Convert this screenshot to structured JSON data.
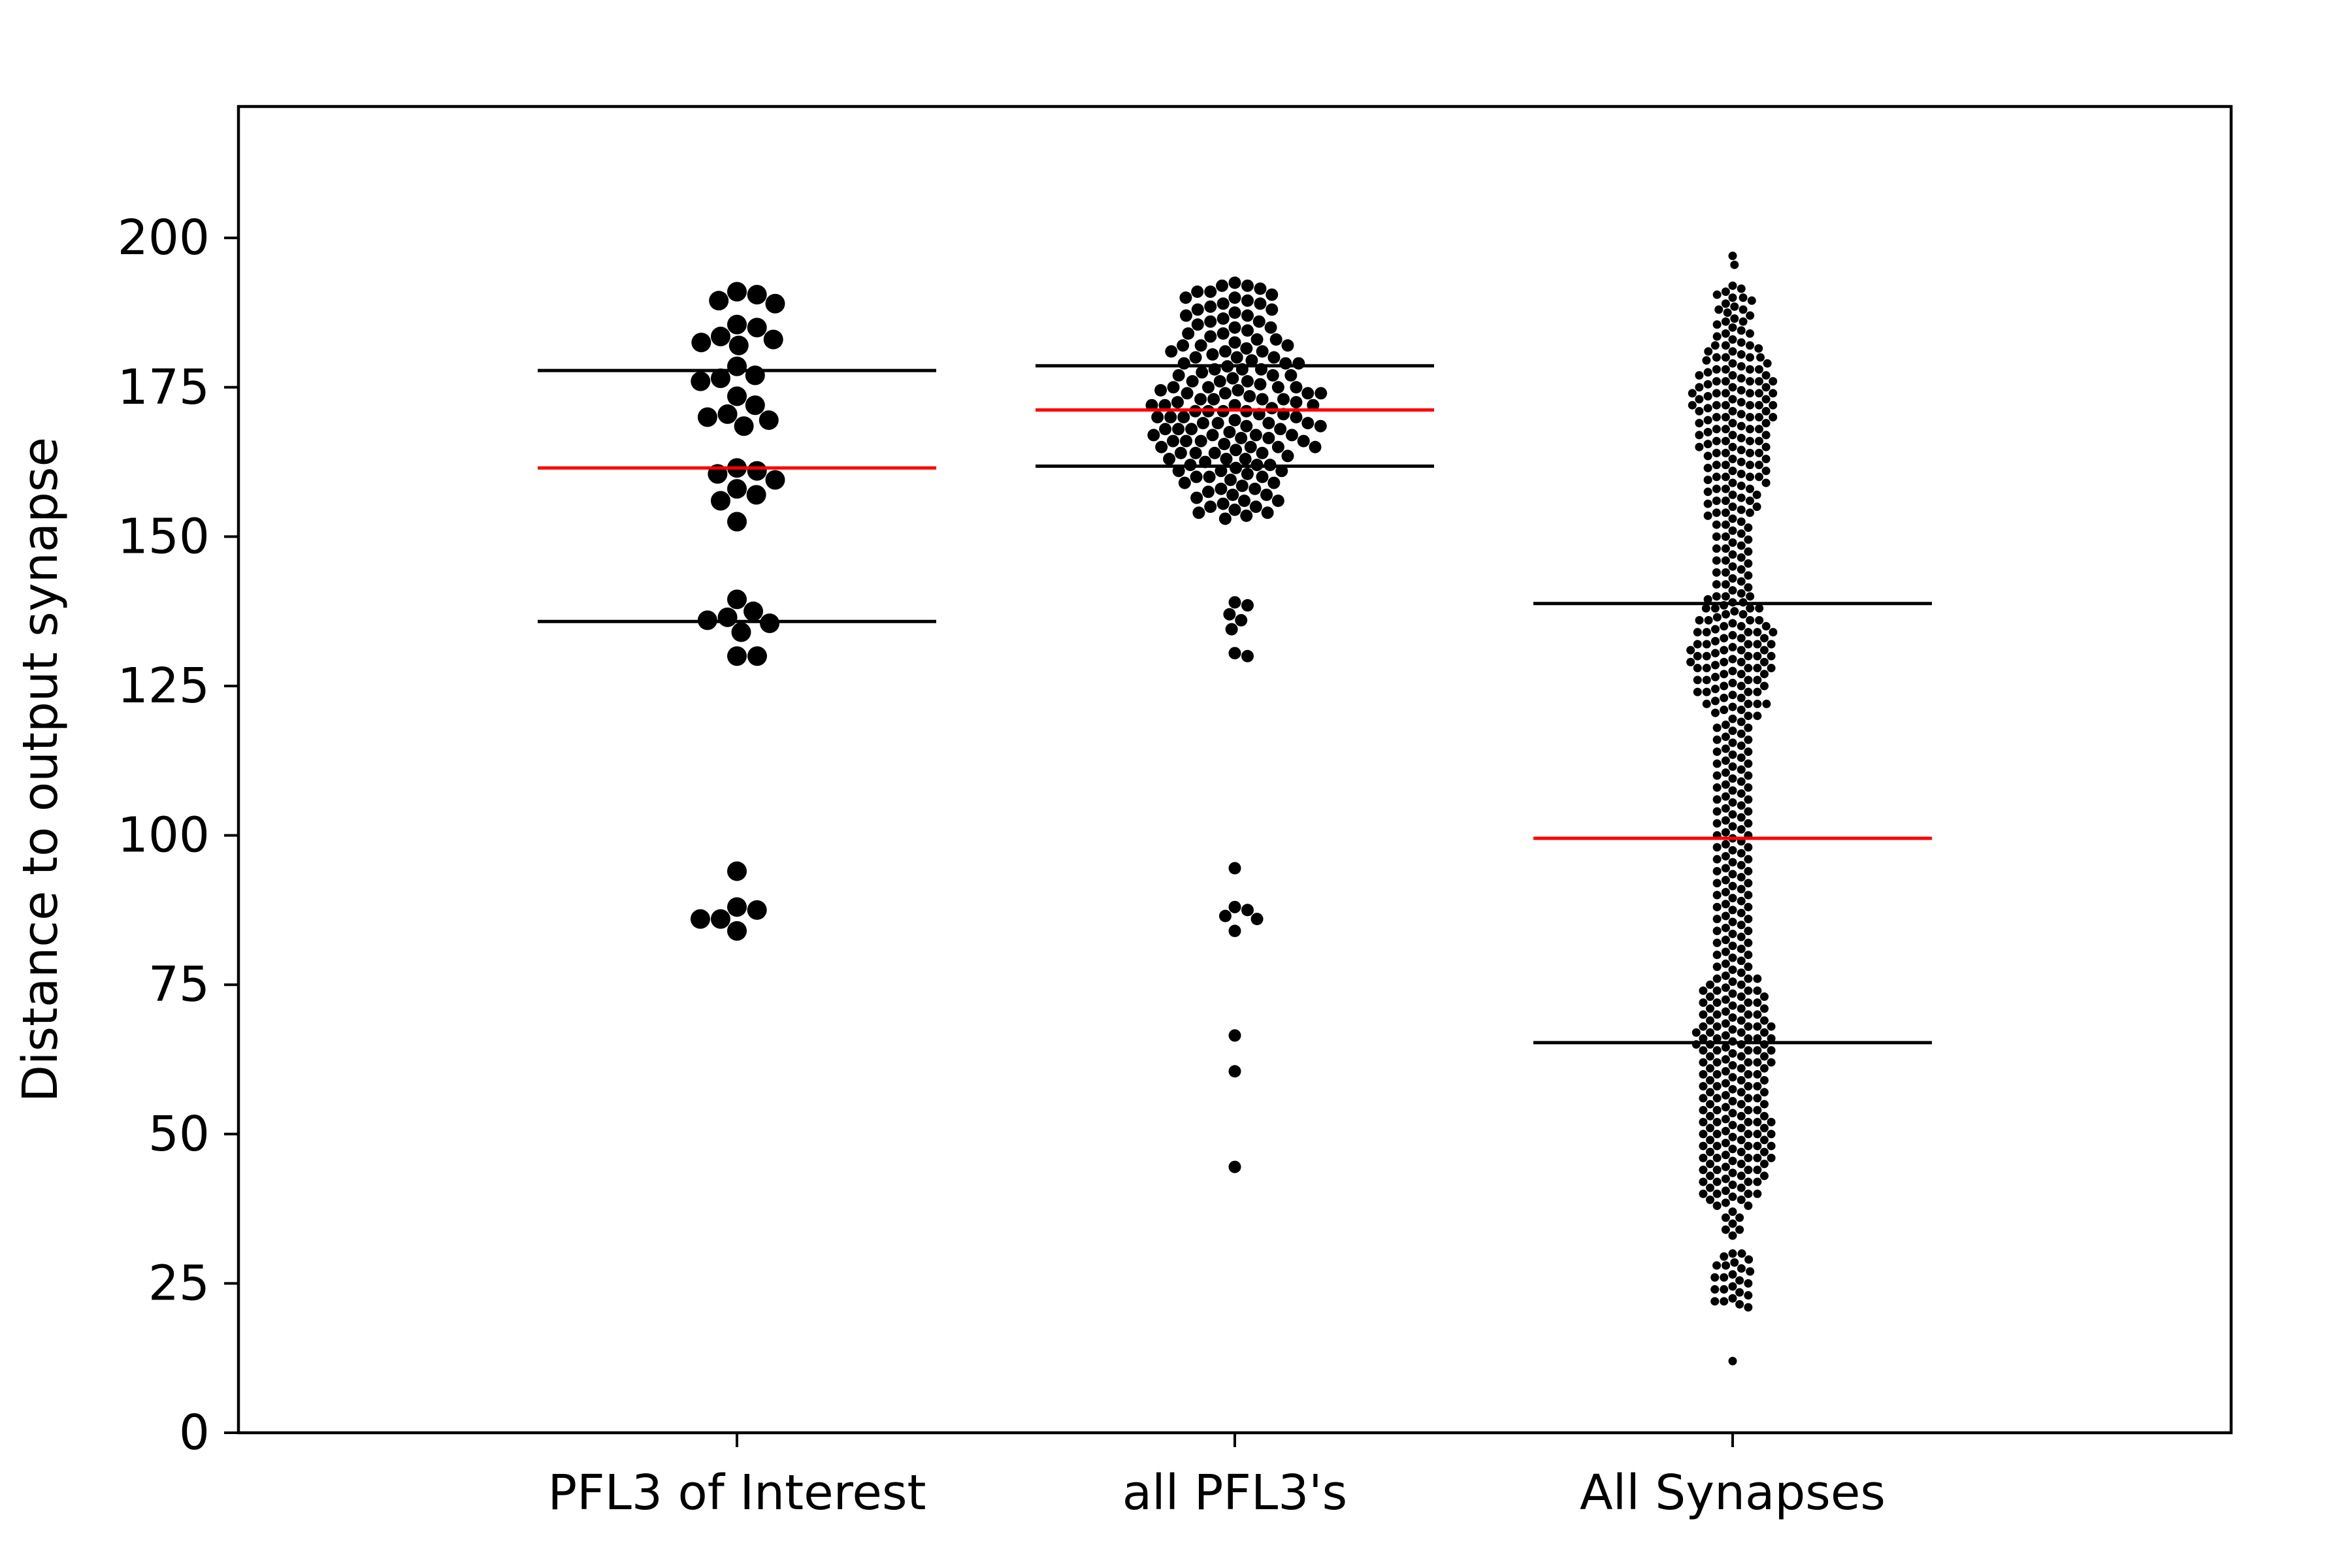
{
  "chart_data": {
    "type": "scatter",
    "subtype": "swarm",
    "title": "",
    "xlabel": "",
    "ylabel": "Distance to output synapse",
    "ylim": [
      0,
      222
    ],
    "yticks": [
      0,
      25,
      50,
      75,
      100,
      125,
      150,
      175,
      200
    ],
    "grid": false,
    "legend": "none",
    "colors": {
      "points": "#000000",
      "median": "#ff0000",
      "quartile": "#000000"
    },
    "categories": [
      "PFL3 of Interest",
      "all PFL3's",
      "All Synapses"
    ],
    "groups": [
      {
        "name": "PFL3 of Interest",
        "median": 161.5,
        "q1": 135.8,
        "q3": 177.8,
        "values": [
          191,
          190.5,
          189.5,
          189,
          185.5,
          185,
          183.5,
          183,
          182.5,
          182,
          178.5,
          177,
          176.5,
          176,
          173.5,
          172,
          170.5,
          170,
          169.5,
          168.5,
          161.5,
          161,
          160.5,
          159.5,
          158,
          157,
          156,
          152.5,
          139.5,
          137.5,
          136.5,
          136,
          135.5,
          134,
          130,
          130,
          94,
          88,
          87.5,
          86,
          86,
          84
        ]
      },
      {
        "name": "all PFL3's",
        "median": 171.2,
        "q1": 161.8,
        "q3": 178.6,
        "values": [
          192.5,
          192,
          191.5,
          191,
          190.5,
          190,
          189.5,
          189,
          188.5,
          188,
          187.5,
          187,
          186.5,
          186,
          185.5,
          185,
          184.5,
          184,
          183.5,
          183,
          182.5,
          182,
          181.5,
          181,
          180.5,
          180,
          179.5,
          179,
          178.5,
          178,
          177.5,
          177,
          176.5,
          176,
          175.5,
          175,
          174.5,
          174,
          173.5,
          173,
          172.5,
          172,
          171.5,
          171,
          170.5,
          170,
          169.5,
          169,
          168.5,
          168,
          167.5,
          167,
          166.5,
          166,
          165.5,
          165,
          164.5,
          164,
          163.5,
          163,
          162.5,
          162,
          161.5,
          161,
          160.5,
          160,
          159.5,
          159,
          158.5,
          158,
          157.5,
          157,
          156.5,
          156,
          155.5,
          155,
          154.5,
          154,
          153.5,
          153,
          192,
          191,
          190,
          189,
          188,
          187,
          186,
          185,
          184,
          183,
          182,
          181,
          180,
          179,
          178,
          177,
          176,
          175,
          174,
          173,
          172,
          171,
          170,
          169,
          168,
          167,
          166,
          165,
          164,
          163,
          162,
          161,
          160,
          159,
          158,
          157,
          156,
          155,
          154,
          182,
          181,
          180,
          179,
          178,
          177,
          176,
          175,
          174,
          173,
          172,
          171,
          170,
          169,
          168,
          167,
          166,
          165,
          164,
          163,
          162,
          161,
          160,
          175,
          174,
          173,
          172,
          171,
          170,
          169,
          168,
          167,
          166,
          165,
          164,
          174.5,
          172.5,
          170.5,
          168.5,
          166.5,
          139,
          138.5,
          137,
          136,
          134.5,
          130.5,
          130,
          94.5,
          88,
          87.5,
          86.5,
          86,
          84,
          66.5,
          60.5,
          44.5
        ]
      },
      {
        "name": "All Synapses",
        "median": 99.5,
        "q1": 65.3,
        "q3": 138.8,
        "values": [
          197,
          195.5,
          192,
          191.5,
          191,
          190.5,
          190,
          189.5,
          189,
          188.5,
          188,
          187.5,
          187,
          186.5,
          186,
          185.5,
          185,
          184.5,
          184,
          183.5,
          183,
          182.5,
          182,
          181.5,
          181,
          180.5,
          180,
          179.5,
          179,
          178.5,
          178,
          177.5,
          177,
          176.5,
          176,
          175.5,
          175,
          174.5,
          174,
          173.5,
          173,
          172.5,
          172,
          171.5,
          171,
          170.5,
          170,
          169.5,
          169,
          168.5,
          168,
          167.5,
          167,
          166.5,
          166,
          165.5,
          165,
          164.5,
          164,
          163.5,
          163,
          162.5,
          162,
          161.5,
          161,
          160.5,
          160,
          159.5,
          159,
          158.5,
          158,
          157.5,
          157,
          156.5,
          156,
          155.5,
          155,
          154.5,
          154,
          153.5,
          153,
          152.5,
          152,
          151.5,
          151,
          150.5,
          150,
          149.5,
          149,
          148.5,
          148,
          147.5,
          147,
          146.5,
          146,
          145.5,
          145,
          144.5,
          144,
          143.5,
          143,
          142.5,
          142,
          141.5,
          141,
          140.5,
          140,
          139.5,
          139,
          138.5,
          138,
          137.5,
          137,
          136.5,
          136,
          135.5,
          135,
          134.5,
          134,
          133.5,
          133,
          132.5,
          132,
          131.5,
          131,
          130.5,
          130,
          129.5,
          129,
          128.5,
          128,
          127.5,
          127,
          126.5,
          126,
          125.5,
          125,
          124.5,
          124,
          123.5,
          123,
          122.5,
          122,
          121.5,
          121,
          120.5,
          120,
          119.5,
          119,
          118.5,
          118,
          117.5,
          117,
          116.5,
          116,
          115.5,
          115,
          114.5,
          114,
          113.5,
          113,
          112.5,
          112,
          111.5,
          111,
          110.5,
          110,
          109.5,
          109,
          108.5,
          108,
          107.5,
          107,
          106.5,
          106,
          105.5,
          105,
          104.5,
          104,
          103.5,
          103,
          102.5,
          102,
          101.5,
          101,
          100.5,
          100,
          99.5,
          99,
          98.5,
          98,
          97.5,
          97,
          96.5,
          96,
          95.5,
          95,
          94.5,
          94,
          93.5,
          93,
          92.5,
          92,
          91.5,
          91,
          90.5,
          90,
          89.5,
          89,
          88.5,
          88,
          87.5,
          87,
          86.5,
          86,
          85.5,
          85,
          84.5,
          84,
          83.5,
          83,
          82.5,
          82,
          81.5,
          81,
          80.5,
          80,
          79.5,
          79,
          78.5,
          78,
          77.5,
          77,
          76.5,
          76,
          75.5,
          75,
          74.5,
          74,
          73.5,
          73,
          72.5,
          72,
          71.5,
          71,
          70.5,
          70,
          69.5,
          69,
          68.5,
          68,
          67.5,
          67,
          66.5,
          66,
          65.5,
          65,
          64.5,
          64,
          63.5,
          63,
          62.5,
          62,
          61.5,
          61,
          60.5,
          60,
          59.5,
          59,
          58.5,
          58,
          57.5,
          57,
          56.5,
          56,
          55.5,
          55,
          54.5,
          54,
          53.5,
          53,
          52.5,
          52,
          51.5,
          51,
          50.5,
          50,
          49.5,
          49,
          48.5,
          48,
          47.5,
          47,
          46.5,
          46,
          45.5,
          45,
          44.5,
          44,
          43.5,
          43,
          42.5,
          42,
          41.5,
          41,
          40.5,
          40,
          39.5,
          39,
          38.5,
          38,
          37,
          36,
          35,
          34,
          33,
          30,
          29.5,
          29,
          28.5,
          28,
          27.5,
          27,
          26.5,
          26,
          25.5,
          25,
          24.5,
          24,
          23.5,
          23,
          22.5,
          22,
          21.5,
          21,
          12,
          190,
          188,
          186,
          184,
          182,
          180,
          178,
          176,
          174,
          172,
          170,
          168,
          166,
          164,
          162,
          160,
          158,
          156,
          154,
          152,
          150,
          148,
          146,
          144,
          142,
          140,
          138,
          136,
          134,
          132,
          130,
          128,
          126,
          124,
          122,
          120,
          118,
          116,
          114,
          112,
          110,
          108,
          106,
          104,
          102,
          100,
          98,
          96,
          94,
          92,
          90,
          88,
          86,
          84,
          82,
          80,
          78,
          76,
          74,
          72,
          70,
          68,
          66,
          64,
          62,
          60,
          58,
          56,
          54,
          52,
          50,
          48,
          46,
          44,
          42,
          40,
          38,
          36,
          34,
          30,
          28,
          26,
          24,
          22,
          182,
          181,
          180,
          179,
          178,
          177,
          176,
          175,
          174,
          173,
          172,
          171,
          170,
          169,
          168,
          167,
          166,
          165,
          164,
          163,
          162,
          161,
          160,
          159,
          158,
          157,
          156,
          155,
          154,
          140,
          139,
          138,
          137,
          136,
          135,
          134,
          133,
          132,
          131,
          130,
          129,
          128,
          127,
          126,
          125,
          124,
          123,
          122,
          121,
          76,
          75,
          74,
          73,
          72,
          71,
          70,
          69,
          68,
          67,
          66,
          65,
          64,
          63,
          62,
          61,
          60,
          59,
          58,
          57,
          56,
          55,
          54,
          53,
          52,
          51,
          50,
          49,
          48,
          47,
          46,
          45,
          44,
          43,
          42,
          41,
          40,
          39,
          180,
          178,
          176,
          174,
          172,
          170,
          168,
          166,
          164,
          162,
          160,
          138,
          136,
          134,
          132,
          130,
          128,
          126,
          124,
          122,
          74,
          72,
          70,
          68,
          66,
          64,
          62,
          60,
          58,
          56,
          54,
          52,
          50,
          48,
          46,
          44,
          42,
          40,
          177,
          175,
          173,
          171,
          169,
          167,
          165,
          135,
          133,
          131,
          129,
          127,
          125,
          73,
          71,
          69,
          67,
          65,
          63,
          61,
          59,
          57,
          55,
          53,
          51,
          49,
          47,
          45,
          43,
          176,
          174,
          172,
          170,
          134,
          132,
          130,
          128,
          68,
          66,
          64,
          62,
          52,
          50,
          48,
          46,
          174,
          172,
          131,
          129,
          67,
          65
        ]
      }
    ]
  }
}
